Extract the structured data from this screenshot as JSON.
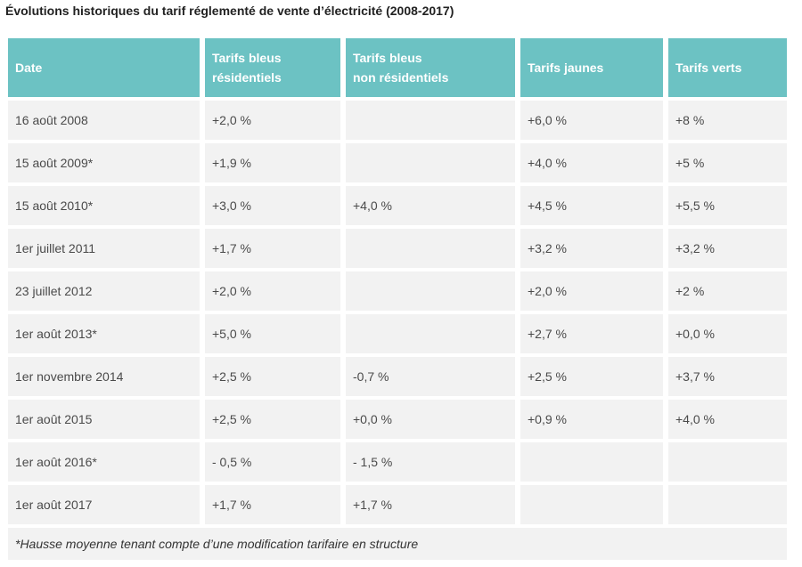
{
  "title": "Évolutions historiques du tarif réglementé de vente d’électricité (2008-2017)",
  "header": {
    "date": "Date",
    "bleus_res_1": "Tarifs bleus",
    "bleus_res_2": "résidentiels",
    "bleus_nonres_1": "Tarifs bleus",
    "bleus_nonres_2": "non résidentiels",
    "jaunes": "Tarifs jaunes",
    "verts": "Tarifs verts"
  },
  "rows": [
    {
      "date": "16 août 2008",
      "bleus_res": "+2,0 %",
      "bleus_nonres": "",
      "jaunes": "+6,0 %",
      "verts": "+8 %"
    },
    {
      "date": "15 août 2009*",
      "bleus_res": "+1,9 %",
      "bleus_nonres": "",
      "jaunes": "+4,0 %",
      "verts": "+5 %"
    },
    {
      "date": "15 août 2010*",
      "bleus_res": "+3,0 %",
      "bleus_nonres": "+4,0 %",
      "jaunes": "+4,5 %",
      "verts": "+5,5 %"
    },
    {
      "date": "1er juillet 2011",
      "bleus_res": "+1,7 %",
      "bleus_nonres": "",
      "jaunes": "+3,2 %",
      "verts": "+3,2 %"
    },
    {
      "date": "23 juillet 2012",
      "bleus_res": "+2,0 %",
      "bleus_nonres": "",
      "jaunes": "+2,0 %",
      "verts": "+2 %"
    },
    {
      "date": "1er août 2013*",
      "bleus_res": "+5,0 %",
      "bleus_nonres": "",
      "jaunes": "+2,7 %",
      "verts": "+0,0 %"
    },
    {
      "date": "1er novembre 2014",
      "bleus_res": "+2,5 %",
      "bleus_nonres": "-0,7 %",
      "jaunes": "+2,5 %",
      "verts": "+3,7 %"
    },
    {
      "date": "1er août 2015",
      "bleus_res": "+2,5 %",
      "bleus_nonres": "+0,0 %",
      "jaunes": "+0,9 %",
      "verts": "+4,0 %"
    },
    {
      "date": "1er août 2016*",
      "bleus_res": "- 0,5 %",
      "bleus_nonres": "- 1,5 %",
      "jaunes": "",
      "verts": ""
    },
    {
      "date": "1er août 2017",
      "bleus_res": "+1,7 %",
      "bleus_nonres": "+1,7 %",
      "jaunes": "",
      "verts": ""
    }
  ],
  "footnote": "*Hausse moyenne tenant compte d’une modification tarifaire en structure"
}
